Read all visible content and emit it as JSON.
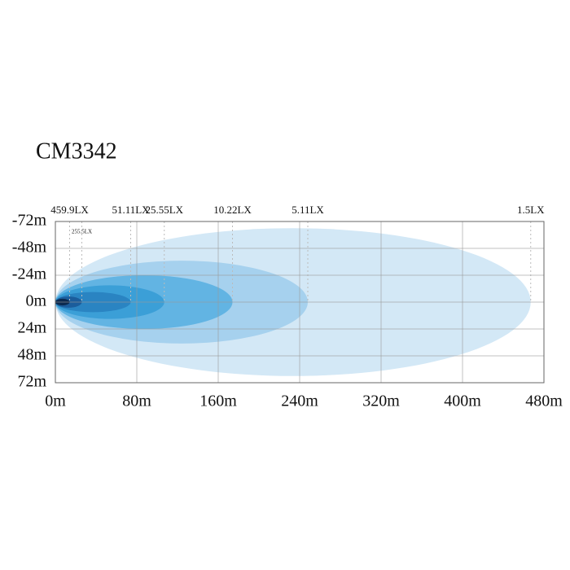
{
  "chart_data": {
    "type": "beam",
    "title": "CM3342",
    "xlim": [
      0,
      480
    ],
    "xticks": [
      {
        "value": 0,
        "label": "0m"
      },
      {
        "value": 80,
        "label": "80m"
      },
      {
        "value": 160,
        "label": "160m"
      },
      {
        "value": 240,
        "label": "240m"
      },
      {
        "value": 320,
        "label": "320m"
      },
      {
        "value": 400,
        "label": "400m"
      },
      {
        "value": 480,
        "label": "480m"
      }
    ],
    "ylim": [
      -72,
      72
    ],
    "yticks": [
      {
        "value": -72,
        "label": "-72m"
      },
      {
        "value": -48,
        "label": "-48m"
      },
      {
        "value": -24,
        "label": "-24m"
      },
      {
        "value": 0,
        "label": "0m"
      },
      {
        "value": 24,
        "label": "24m"
      },
      {
        "value": 48,
        "label": "48m"
      },
      {
        "value": 72,
        "label": "72m"
      }
    ],
    "grid": true,
    "series": [
      {
        "name": "1.5LX",
        "color": "#d3e8f6",
        "reach": 467,
        "halfwidth": 66
      },
      {
        "name": "5.11LX",
        "color": "#a6d1ee",
        "reach": 248,
        "halfwidth": 37
      },
      {
        "name": "10.22LX",
        "color": "#62b4e3",
        "reach": 174,
        "halfwidth": 24
      },
      {
        "name": "25.55LX",
        "color": "#3b9fd7",
        "reach": 107,
        "halfwidth": 15
      },
      {
        "name": "51.11LX",
        "color": "#2a84c2",
        "reach": 74,
        "halfwidth": 9
      },
      {
        "name": "255.5LX",
        "color": "#1b5d9c",
        "reach": 26,
        "halfwidth": 5
      },
      {
        "name": "459.9LX",
        "color": "#0b2a50",
        "reach": 14,
        "halfwidth": 3
      }
    ]
  }
}
